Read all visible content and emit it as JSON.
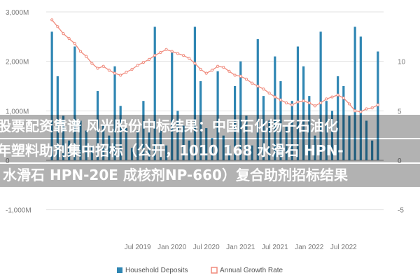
{
  "colors": {
    "bar": "#2f86b3",
    "line": "#f08a7c",
    "grid": "#e2e2e2",
    "zero": "#9a9a9a",
    "overlay": "rgba(0,0,0,0.30)"
  },
  "overlay_text": {
    "line1": "股票配资靠谱 风光股份中标结果：中国石化扬子石油化",
    "line2": "年塑料助剂集中招标（公开，1010 168 水滑石 HPN-",
    "line3": "水滑石 HPN-20E 成核剂NP-660）复合助剂招标结果"
  },
  "chart_data": {
    "type": "bar",
    "title": "",
    "xlabel": "",
    "ylabel": "",
    "left_axis": {
      "ylim": [
        -1500,
        3000
      ],
      "ticks": [
        -1000,
        0,
        1000,
        2000,
        3000
      ],
      "tick_labels": [
        "-1,000M",
        "0",
        "1,000M",
        "2,000M",
        "3,000M"
      ]
    },
    "right_axis": {
      "ylim": [
        -7.5,
        15
      ],
      "ticks": [
        -5,
        0,
        5,
        10
      ],
      "tick_labels": [
        "-5",
        "0",
        "5",
        "10"
      ]
    },
    "x_tick_labels": [
      "Jul 2019",
      "Jan 2020",
      "Jul 2020",
      "Jan 2021",
      "Jul 2021",
      "Jan 2022",
      "Jul 2022"
    ],
    "x_tick_months": [
      0,
      6,
      12,
      18,
      24,
      30,
      36
    ],
    "x_range_months": [
      -16,
      43
    ],
    "months": [
      -15,
      -14,
      -13,
      -12,
      -11,
      -10,
      -9,
      -8,
      -7,
      -6,
      -5,
      -4,
      -3,
      -2,
      -1,
      0,
      1,
      2,
      3,
      4,
      5,
      6,
      7,
      8,
      9,
      10,
      11,
      12,
      13,
      14,
      15,
      16,
      17,
      18,
      19,
      20,
      21,
      22,
      23,
      24,
      25,
      26,
      27,
      28,
      29,
      30,
      31,
      32,
      33,
      34,
      35,
      36,
      37,
      38,
      39,
      40,
      41,
      42
    ],
    "series": [
      {
        "name": "Household Deposits",
        "axis": "left",
        "type": "bar",
        "values": [
          2600,
          1700,
          900,
          400,
          2300,
          800,
          600,
          300,
          1400,
          700,
          500,
          1900,
          1100,
          650,
          250,
          600,
          1200,
          800,
          2700,
          600,
          300,
          2200,
          1000,
          700,
          400,
          2700,
          1600,
          650,
          450,
          1800,
          500,
          300,
          1500,
          2000,
          900,
          300,
          2450,
          1300,
          800,
          2100,
          1600,
          700,
          1200,
          2300,
          1900,
          1300,
          500,
          2600,
          1200,
          1000,
          1700,
          1500,
          900,
          2700,
          2500,
          800,
          400,
          2200
        ]
      },
      {
        "name": "Annual Growth Rate",
        "axis": "right",
        "type": "line",
        "values": [
          14.2,
          13.5,
          12.8,
          12.3,
          11.8,
          11.0,
          10.5,
          9.8,
          9.3,
          9.5,
          9.1,
          8.8,
          8.6,
          8.9,
          9.2,
          9.6,
          9.9,
          10.2,
          10.6,
          10.9,
          11.2,
          11.0,
          10.8,
          10.6,
          10.3,
          9.8,
          9.2,
          8.8,
          9.1,
          9.5,
          9.4,
          9.0,
          8.6,
          8.5,
          8.2,
          7.8,
          7.5,
          7.2,
          6.8,
          6.4,
          6.1,
          5.8,
          5.6,
          5.9,
          6.0,
          5.8,
          5.5,
          5.8,
          6.2,
          6.4,
          6.6,
          6.3,
          5.7,
          5.0,
          4.9,
          5.2,
          5.3,
          5.6
        ]
      }
    ],
    "legend": {
      "placement": "bottom-center",
      "entries": [
        "Household Deposits",
        "Annual Growth Rate"
      ]
    },
    "grid": true
  }
}
